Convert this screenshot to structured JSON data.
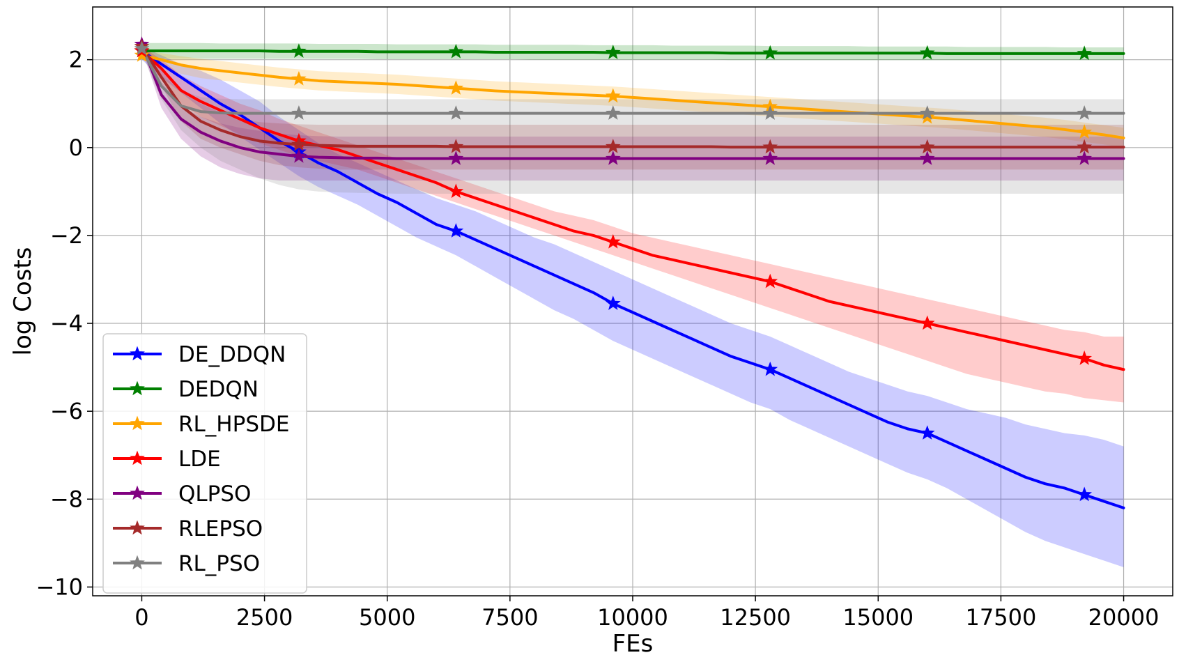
{
  "chart_data": {
    "type": "line",
    "title": "",
    "xlabel": "FEs",
    "ylabel": "log Costs",
    "xlim": [
      -1000,
      21000
    ],
    "ylim": [
      -10.2,
      3.2
    ],
    "xticks": [
      0,
      2500,
      5000,
      7500,
      10000,
      12500,
      15000,
      17500,
      20000
    ],
    "xtick_labels": [
      "0",
      "2500",
      "5000",
      "7500",
      "10000",
      "12500",
      "15000",
      "17500",
      "20000"
    ],
    "yticks": [
      2,
      0,
      -2,
      -4,
      -6,
      -8,
      -10
    ],
    "ytick_labels": [
      "2",
      "0",
      "−2",
      "−4",
      "−6",
      "−8",
      "−10"
    ],
    "grid": true,
    "legend_position": "lower-left",
    "marker": "star",
    "x": [
      0,
      400,
      800,
      1200,
      1600,
      2000,
      2400,
      2800,
      3200,
      3600,
      4000,
      4400,
      4800,
      5200,
      5600,
      6000,
      6400,
      6800,
      7200,
      7600,
      8000,
      8400,
      8800,
      9200,
      9600,
      10000,
      10400,
      10800,
      11200,
      11600,
      12000,
      12400,
      12800,
      13200,
      13600,
      14000,
      14400,
      14800,
      15200,
      15600,
      16000,
      16400,
      16800,
      17200,
      17600,
      18000,
      18400,
      18800,
      19200,
      19600,
      20000
    ],
    "marker_x": [
      0,
      3200,
      6400,
      9600,
      12800,
      16000,
      19200
    ],
    "series": [
      {
        "name": "DE_DDQN",
        "color": "#0000ff",
        "values": [
          2.2,
          1.9,
          1.6,
          1.3,
          1.0,
          0.75,
          0.45,
          0.15,
          -0.1,
          -0.35,
          -0.55,
          -0.8,
          -1.05,
          -1.25,
          -1.5,
          -1.75,
          -1.9,
          -2.1,
          -2.3,
          -2.5,
          -2.7,
          -2.9,
          -3.1,
          -3.3,
          -3.55,
          -3.75,
          -3.95,
          -4.15,
          -4.35,
          -4.55,
          -4.75,
          -4.9,
          -5.05,
          -5.25,
          -5.45,
          -5.65,
          -5.85,
          -6.05,
          -6.25,
          -6.4,
          -6.5,
          -6.7,
          -6.9,
          -7.1,
          -7.3,
          -7.5,
          -7.65,
          -7.75,
          -7.9,
          -8.05,
          -8.2
        ],
        "upper": [
          2.3,
          2.1,
          1.9,
          1.75,
          1.55,
          1.3,
          1.05,
          0.7,
          0.4,
          0.1,
          -0.15,
          -0.35,
          -0.55,
          -0.75,
          -0.95,
          -1.15,
          -1.3,
          -1.45,
          -1.65,
          -1.85,
          -2.05,
          -2.2,
          -2.4,
          -2.6,
          -2.8,
          -3.0,
          -3.2,
          -3.4,
          -3.6,
          -3.8,
          -4.0,
          -4.15,
          -4.3,
          -4.5,
          -4.7,
          -4.9,
          -5.1,
          -5.25,
          -5.4,
          -5.55,
          -5.65,
          -5.8,
          -5.95,
          -6.05,
          -6.15,
          -6.3,
          -6.4,
          -6.5,
          -6.55,
          -6.65,
          -6.8
        ],
        "lower": [
          2.0,
          1.6,
          1.25,
          0.9,
          0.55,
          0.25,
          -0.05,
          -0.35,
          -0.65,
          -0.9,
          -1.1,
          -1.3,
          -1.55,
          -1.8,
          -2.05,
          -2.25,
          -2.45,
          -2.7,
          -2.95,
          -3.2,
          -3.45,
          -3.7,
          -3.9,
          -4.15,
          -4.4,
          -4.6,
          -4.8,
          -5.0,
          -5.2,
          -5.4,
          -5.6,
          -5.8,
          -5.95,
          -6.2,
          -6.4,
          -6.6,
          -6.8,
          -7.0,
          -7.2,
          -7.4,
          -7.55,
          -7.75,
          -8.0,
          -8.25,
          -8.5,
          -8.75,
          -8.95,
          -9.1,
          -9.25,
          -9.4,
          -9.55
        ]
      },
      {
        "name": "DEDQN",
        "color": "#008000",
        "values": [
          2.2,
          2.2,
          2.2,
          2.2,
          2.2,
          2.2,
          2.2,
          2.19,
          2.19,
          2.19,
          2.19,
          2.19,
          2.18,
          2.18,
          2.18,
          2.18,
          2.18,
          2.18,
          2.17,
          2.17,
          2.17,
          2.17,
          2.17,
          2.17,
          2.16,
          2.16,
          2.16,
          2.16,
          2.16,
          2.16,
          2.15,
          2.15,
          2.15,
          2.15,
          2.15,
          2.15,
          2.15,
          2.15,
          2.15,
          2.15,
          2.15,
          2.14,
          2.14,
          2.14,
          2.14,
          2.14,
          2.14,
          2.14,
          2.14,
          2.14,
          2.14
        ],
        "upper": [
          2.38,
          2.38,
          2.38,
          2.38,
          2.37,
          2.37,
          2.37,
          2.37,
          2.37,
          2.36,
          2.36,
          2.36,
          2.36,
          2.35,
          2.35,
          2.35,
          2.35,
          2.35,
          2.34,
          2.34,
          2.34,
          2.34,
          2.34,
          2.33,
          2.33,
          2.33,
          2.33,
          2.32,
          2.32,
          2.32,
          2.32,
          2.32,
          2.31,
          2.31,
          2.31,
          2.31,
          2.31,
          2.3,
          2.3,
          2.3,
          2.3,
          2.3,
          2.29,
          2.29,
          2.29,
          2.29,
          2.29,
          2.28,
          2.28,
          2.28,
          2.28
        ],
        "lower": [
          2.02,
          2.02,
          2.02,
          2.02,
          2.02,
          2.02,
          2.02,
          2.02,
          2.02,
          2.02,
          2.02,
          2.02,
          2.01,
          2.01,
          2.01,
          2.01,
          2.01,
          2.01,
          2.01,
          2.01,
          2.0,
          2.0,
          2.0,
          2.0,
          2.0,
          2.0,
          2.0,
          2.0,
          2.0,
          2.0,
          1.99,
          1.99,
          1.99,
          1.99,
          1.99,
          1.99,
          1.99,
          1.99,
          1.99,
          1.99,
          1.99,
          1.99,
          1.99,
          1.99,
          1.99,
          1.99,
          1.99,
          1.99,
          1.99,
          1.99,
          1.99
        ]
      },
      {
        "name": "RL_HPSDE",
        "color": "#ffa500",
        "values": [
          2.1,
          2.0,
          1.88,
          1.8,
          1.75,
          1.7,
          1.65,
          1.6,
          1.56,
          1.52,
          1.5,
          1.48,
          1.46,
          1.44,
          1.41,
          1.38,
          1.35,
          1.32,
          1.29,
          1.27,
          1.25,
          1.23,
          1.21,
          1.19,
          1.17,
          1.14,
          1.11,
          1.08,
          1.05,
          1.02,
          0.99,
          0.96,
          0.93,
          0.9,
          0.87,
          0.84,
          0.81,
          0.78,
          0.75,
          0.72,
          0.69,
          0.66,
          0.62,
          0.58,
          0.54,
          0.5,
          0.46,
          0.41,
          0.35,
          0.29,
          0.22
        ],
        "upper": [
          2.2,
          2.15,
          2.08,
          2.02,
          1.97,
          1.92,
          1.87,
          1.82,
          1.78,
          1.74,
          1.72,
          1.7,
          1.68,
          1.66,
          1.63,
          1.6,
          1.57,
          1.54,
          1.51,
          1.49,
          1.47,
          1.45,
          1.43,
          1.41,
          1.39,
          1.36,
          1.33,
          1.3,
          1.27,
          1.24,
          1.21,
          1.18,
          1.15,
          1.12,
          1.09,
          1.06,
          1.03,
          1.0,
          0.97,
          0.94,
          0.91,
          0.88,
          0.84,
          0.8,
          0.76,
          0.72,
          0.68,
          0.63,
          0.57,
          0.51,
          0.45
        ],
        "lower": [
          2.0,
          1.85,
          1.68,
          1.58,
          1.53,
          1.48,
          1.43,
          1.38,
          1.34,
          1.3,
          1.28,
          1.26,
          1.24,
          1.22,
          1.19,
          1.16,
          1.13,
          1.1,
          1.07,
          1.05,
          1.03,
          1.01,
          0.99,
          0.97,
          0.95,
          0.92,
          0.89,
          0.86,
          0.83,
          0.8,
          0.77,
          0.74,
          0.71,
          0.68,
          0.65,
          0.62,
          0.59,
          0.56,
          0.53,
          0.5,
          0.47,
          0.44,
          0.4,
          0.36,
          0.32,
          0.28,
          0.24,
          0.19,
          0.13,
          0.07,
          0.0
        ]
      },
      {
        "name": "LDE",
        "color": "#ff0000",
        "values": [
          2.2,
          1.8,
          1.3,
          1.05,
          0.85,
          0.65,
          0.45,
          0.3,
          0.15,
          0.05,
          -0.05,
          -0.2,
          -0.35,
          -0.5,
          -0.65,
          -0.8,
          -1.0,
          -1.15,
          -1.3,
          -1.45,
          -1.6,
          -1.75,
          -1.9,
          -2.0,
          -2.15,
          -2.3,
          -2.45,
          -2.55,
          -2.65,
          -2.75,
          -2.85,
          -2.95,
          -3.05,
          -3.2,
          -3.35,
          -3.5,
          -3.6,
          -3.7,
          -3.8,
          -3.9,
          -4.0,
          -4.1,
          -4.2,
          -4.3,
          -4.4,
          -4.5,
          -4.6,
          -4.7,
          -4.8,
          -4.95,
          -5.05
        ],
        "upper": [
          2.3,
          2.0,
          1.65,
          1.4,
          1.2,
          1.0,
          0.85,
          0.65,
          0.5,
          0.35,
          0.2,
          0.05,
          -0.1,
          -0.25,
          -0.4,
          -0.55,
          -0.7,
          -0.85,
          -1.0,
          -1.15,
          -1.3,
          -1.45,
          -1.55,
          -1.65,
          -1.8,
          -1.95,
          -2.05,
          -2.15,
          -2.25,
          -2.35,
          -2.45,
          -2.55,
          -2.65,
          -2.75,
          -2.85,
          -2.95,
          -3.05,
          -3.15,
          -3.25,
          -3.35,
          -3.45,
          -3.55,
          -3.65,
          -3.75,
          -3.85,
          -3.95,
          -4.05,
          -4.15,
          -4.2,
          -4.3,
          -4.3
        ],
        "lower": [
          2.1,
          1.6,
          1.0,
          0.7,
          0.5,
          0.3,
          0.1,
          -0.05,
          -0.2,
          -0.3,
          -0.4,
          -0.5,
          -0.65,
          -0.8,
          -0.95,
          -1.1,
          -1.25,
          -1.4,
          -1.55,
          -1.7,
          -1.85,
          -2.0,
          -2.15,
          -2.3,
          -2.45,
          -2.6,
          -2.75,
          -2.9,
          -3.05,
          -3.2,
          -3.35,
          -3.5,
          -3.65,
          -3.8,
          -3.95,
          -4.1,
          -4.25,
          -4.4,
          -4.55,
          -4.7,
          -4.85,
          -5.0,
          -5.15,
          -5.25,
          -5.35,
          -5.45,
          -5.55,
          -5.6,
          -5.7,
          -5.75,
          -5.8
        ]
      },
      {
        "name": "QLPSO",
        "color": "#800080",
        "values": [
          2.35,
          1.2,
          0.65,
          0.35,
          0.15,
          0.0,
          -0.1,
          -0.15,
          -0.2,
          -0.22,
          -0.23,
          -0.24,
          -0.24,
          -0.25,
          -0.25,
          -0.25,
          -0.25,
          -0.25,
          -0.25,
          -0.25,
          -0.25,
          -0.25,
          -0.25,
          -0.25,
          -0.25,
          -0.25,
          -0.25,
          -0.25,
          -0.25,
          -0.25,
          -0.25,
          -0.25,
          -0.25,
          -0.25,
          -0.25,
          -0.25,
          -0.25,
          -0.25,
          -0.25,
          -0.25,
          -0.25,
          -0.25,
          -0.25,
          -0.25,
          -0.25,
          -0.25,
          -0.25,
          -0.25,
          -0.25,
          -0.25,
          -0.25
        ],
        "upper": [
          2.45,
          1.5,
          0.95,
          0.7,
          0.55,
          0.45,
          0.38,
          0.32,
          0.28,
          0.26,
          0.25,
          0.25,
          0.25,
          0.25,
          0.25,
          0.25,
          0.25,
          0.25,
          0.25,
          0.25,
          0.25,
          0.25,
          0.25,
          0.25,
          0.25,
          0.25,
          0.25,
          0.25,
          0.25,
          0.25,
          0.25,
          0.25,
          0.25,
          0.25,
          0.25,
          0.25,
          0.25,
          0.25,
          0.25,
          0.25,
          0.25,
          0.25,
          0.25,
          0.25,
          0.25,
          0.25,
          0.25,
          0.25,
          0.25,
          0.25,
          0.25
        ],
        "lower": [
          2.25,
          0.9,
          0.2,
          -0.2,
          -0.45,
          -0.6,
          -0.7,
          -0.75,
          -0.75,
          -0.75,
          -0.75,
          -0.75,
          -0.75,
          -0.75,
          -0.75,
          -0.75,
          -0.75,
          -0.75,
          -0.75,
          -0.75,
          -0.75,
          -0.75,
          -0.75,
          -0.75,
          -0.75,
          -0.75,
          -0.75,
          -0.75,
          -0.75,
          -0.75,
          -0.75,
          -0.75,
          -0.75,
          -0.75,
          -0.75,
          -0.75,
          -0.75,
          -0.75,
          -0.75,
          -0.75,
          -0.75,
          -0.75,
          -0.75,
          -0.75,
          -0.75,
          -0.75,
          -0.75,
          -0.75,
          -0.75,
          -0.75,
          -0.75
        ]
      },
      {
        "name": "RLEPSO",
        "color": "#a52a2a",
        "values": [
          2.3,
          1.6,
          0.95,
          0.6,
          0.4,
          0.25,
          0.15,
          0.1,
          0.07,
          0.05,
          0.04,
          0.03,
          0.03,
          0.03,
          0.03,
          0.03,
          0.02,
          0.02,
          0.02,
          0.02,
          0.02,
          0.02,
          0.02,
          0.02,
          0.02,
          0.02,
          0.02,
          0.02,
          0.02,
          0.02,
          0.01,
          0.01,
          0.01,
          0.01,
          0.01,
          0.01,
          0.01,
          0.01,
          0.01,
          0.01,
          0.01,
          0.01,
          0.01,
          0.01,
          0.01,
          0.01,
          0.01,
          0.01,
          0.01,
          0.01,
          0.01
        ],
        "upper": [
          2.4,
          1.8,
          1.3,
          1.0,
          0.8,
          0.65,
          0.58,
          0.55,
          0.53,
          0.52,
          0.52,
          0.52,
          0.52,
          0.52,
          0.52,
          0.52,
          0.52,
          0.52,
          0.52,
          0.52,
          0.52,
          0.52,
          0.52,
          0.52,
          0.52,
          0.52,
          0.52,
          0.52,
          0.52,
          0.52,
          0.52,
          0.52,
          0.52,
          0.52,
          0.52,
          0.52,
          0.52,
          0.52,
          0.52,
          0.52,
          0.52,
          0.52,
          0.52,
          0.52,
          0.52,
          0.52,
          0.52,
          0.52,
          0.52,
          0.52,
          0.52
        ],
        "lower": [
          2.2,
          1.4,
          0.6,
          0.2,
          0.0,
          -0.15,
          -0.3,
          -0.4,
          -0.45,
          -0.48,
          -0.5,
          -0.5,
          -0.5,
          -0.5,
          -0.5,
          -0.5,
          -0.5,
          -0.5,
          -0.5,
          -0.5,
          -0.5,
          -0.5,
          -0.5,
          -0.5,
          -0.5,
          -0.5,
          -0.5,
          -0.5,
          -0.5,
          -0.5,
          -0.5,
          -0.5,
          -0.5,
          -0.5,
          -0.5,
          -0.5,
          -0.5,
          -0.5,
          -0.5,
          -0.5,
          -0.5,
          -0.5,
          -0.5,
          -0.5,
          -0.5,
          -0.5,
          -0.5,
          -0.5,
          -0.5,
          -0.5,
          -0.5
        ]
      },
      {
        "name": "RL_PSO",
        "color": "#808080",
        "values": [
          2.25,
          1.4,
          0.95,
          0.82,
          0.79,
          0.78,
          0.78,
          0.78,
          0.78,
          0.78,
          0.78,
          0.78,
          0.78,
          0.78,
          0.78,
          0.78,
          0.78,
          0.78,
          0.78,
          0.78,
          0.78,
          0.78,
          0.78,
          0.78,
          0.78,
          0.78,
          0.78,
          0.78,
          0.78,
          0.78,
          0.78,
          0.78,
          0.78,
          0.78,
          0.78,
          0.78,
          0.78,
          0.78,
          0.78,
          0.78,
          0.78,
          0.78,
          0.78,
          0.78,
          0.78,
          0.78,
          0.78,
          0.78,
          0.78,
          0.78,
          0.78
        ],
        "upper": [
          2.35,
          1.65,
          1.3,
          1.15,
          1.11,
          1.1,
          1.1,
          1.1,
          1.1,
          1.1,
          1.1,
          1.1,
          1.1,
          1.1,
          1.1,
          1.1,
          1.1,
          1.1,
          1.1,
          1.1,
          1.1,
          1.1,
          1.1,
          1.1,
          1.1,
          1.1,
          1.1,
          1.1,
          1.1,
          1.1,
          1.1,
          1.1,
          1.1,
          1.1,
          1.1,
          1.1,
          1.1,
          1.1,
          1.1,
          1.1,
          1.1,
          1.1,
          1.1,
          1.1,
          1.1,
          1.1,
          1.1,
          1.1,
          1.1,
          1.1,
          1.1
        ],
        "lower": [
          2.15,
          1.1,
          0.4,
          0.0,
          -0.3,
          -0.5,
          -0.7,
          -0.85,
          -0.95,
          -1.0,
          -1.02,
          -1.03,
          -1.04,
          -1.05,
          -1.05,
          -1.05,
          -1.05,
          -1.05,
          -1.05,
          -1.05,
          -1.05,
          -1.05,
          -1.05,
          -1.05,
          -1.05,
          -1.05,
          -1.05,
          -1.05,
          -1.05,
          -1.05,
          -1.05,
          -1.05,
          -1.05,
          -1.05,
          -1.05,
          -1.05,
          -1.05,
          -1.05,
          -1.05,
          -1.05,
          -1.05,
          -1.05,
          -1.05,
          -1.05,
          -1.05,
          -1.05,
          -1.05,
          -1.05,
          -1.05,
          -1.05,
          -1.05
        ]
      }
    ]
  }
}
